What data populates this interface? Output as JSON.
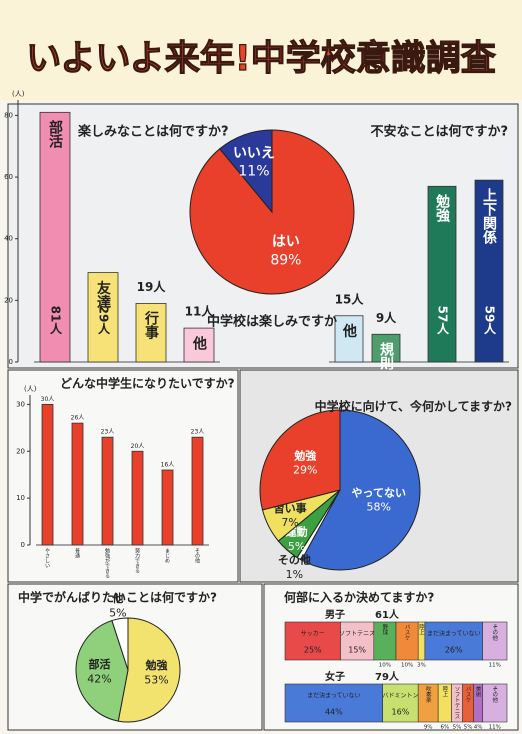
{
  "title": "いよいよ来年!中学校意識調査",
  "chart_data": [
    {
      "type": "bar",
      "title": "楽しみなことは何ですか?",
      "y_label": "(人)",
      "categories": [
        "部活",
        "友達",
        "行事",
        "他"
      ],
      "values": [
        81,
        29,
        19,
        11
      ],
      "value_labels": [
        "81人",
        "29人",
        "19人",
        "11人"
      ],
      "colors": [
        "#f08db0",
        "#f6e276",
        "#f6e276",
        "#f9c9d9"
      ],
      "ylim": [
        0,
        85
      ],
      "yticks": [
        0,
        20,
        40,
        60,
        80
      ]
    },
    {
      "type": "bar",
      "title": "不安なことは何ですか?",
      "categories": [
        "他",
        "規則",
        "勉強",
        "上下関係"
      ],
      "values": [
        15,
        9,
        57,
        59
      ],
      "value_labels": [
        "15人",
        "9人",
        "57人",
        "59人"
      ],
      "colors": [
        "#cfe8f2",
        "#4f9d6c",
        "#1f7a5a",
        "#1e3a8a"
      ],
      "ylim": [
        0,
        85
      ]
    },
    {
      "type": "pie",
      "title": "中学校は楽しみですか",
      "categories": [
        "はい",
        "いいえ"
      ],
      "values": [
        89,
        11
      ],
      "value_labels": [
        "89%",
        "11%"
      ],
      "colors": [
        "#e8402a",
        "#2a3a9a"
      ]
    },
    {
      "type": "bar",
      "title": "どんな中学生になりたいですか?",
      "y_label": "(人)",
      "categories": [
        "やさしい",
        "普通",
        "勉強ができる",
        "努力できる",
        "まじめ",
        "その他"
      ],
      "values": [
        30,
        26,
        23,
        20,
        16,
        23
      ],
      "value_labels": [
        "30人",
        "26人",
        "23人",
        "20人",
        "16人",
        "23人"
      ],
      "colors": [
        "#e8402a",
        "#e8402a",
        "#e8402a",
        "#e8402a",
        "#e8402a",
        "#e8402a"
      ],
      "ylim": [
        0,
        32
      ],
      "yticks": [
        0,
        10,
        20,
        30
      ]
    },
    {
      "type": "pie",
      "title": "中学校に向けて、今何かしてますか?",
      "categories": [
        "やってない",
        "その他",
        "運動",
        "習い事",
        "勉強"
      ],
      "values": [
        58,
        1,
        5,
        7,
        29
      ],
      "value_labels": [
        "58%",
        "1%",
        "5%",
        "7%",
        "29%"
      ],
      "colors": [
        "#3a6ad0",
        "#ffffff",
        "#3aa040",
        "#f0e060",
        "#e8402a"
      ]
    },
    {
      "type": "pie",
      "title": "中学でがんばりたいことは何ですか?",
      "categories": [
        "勉強",
        "部活",
        "他"
      ],
      "values": [
        53,
        42,
        5
      ],
      "value_labels": [
        "53%",
        "42%",
        "5%"
      ],
      "colors": [
        "#f2e36e",
        "#8fd07a",
        "#ffffff"
      ]
    },
    {
      "type": "hbar_stack",
      "title": "何部に入るか決めてますか?",
      "groups": [
        {
          "name": "男子",
          "total_label": "61人",
          "segments": [
            {
              "name": "サッカー",
              "value": 25,
              "value_label": "25%",
              "color": "#e84a4a"
            },
            {
              "name": "ソフトテニス",
              "value": 15,
              "value_label": "15%",
              "color": "#f4c0c8"
            },
            {
              "name": "野球",
              "value": 10,
              "value_label": "10%",
              "color": "#5ab05a"
            },
            {
              "name": "バスケ",
              "value": 10,
              "value_label": "10%",
              "color": "#f08a3a"
            },
            {
              "name": "陸上",
              "value": 3,
              "value_label": "3%",
              "color": "#f4e060"
            },
            {
              "name": "まだ決まっていない",
              "value": 26,
              "value_label": "26%",
              "color": "#4a7ad8"
            },
            {
              "name": "その他",
              "value": 11,
              "value_label": "11%",
              "color": "#d8b0e0"
            }
          ]
        },
        {
          "name": "女子",
          "total_label": "79人",
          "segments": [
            {
              "name": "まだ決まっていない",
              "value": 44,
              "value_label": "44%",
              "color": "#4a7ad8"
            },
            {
              "name": "バドミントン",
              "value": 16,
              "value_label": "16%",
              "color": "#c8e070"
            },
            {
              "name": "吹奏楽",
              "value": 9,
              "value_label": "9%",
              "color": "#f0a040"
            },
            {
              "name": "陸上",
              "value": 6,
              "value_label": "6%",
              "color": "#f4e060"
            },
            {
              "name": "ソフトテニス",
              "value": 5,
              "value_label": "5%",
              "color": "#f4c0c8"
            },
            {
              "name": "バスケ",
              "value": 5,
              "value_label": "5%",
              "color": "#e8603a"
            },
            {
              "name": "美術",
              "value": 4,
              "value_label": "4%",
              "color": "#b070c8"
            },
            {
              "name": "その他",
              "value": 11,
              "value_label": "11%",
              "color": "#d8b0e0"
            }
          ]
        }
      ]
    }
  ]
}
